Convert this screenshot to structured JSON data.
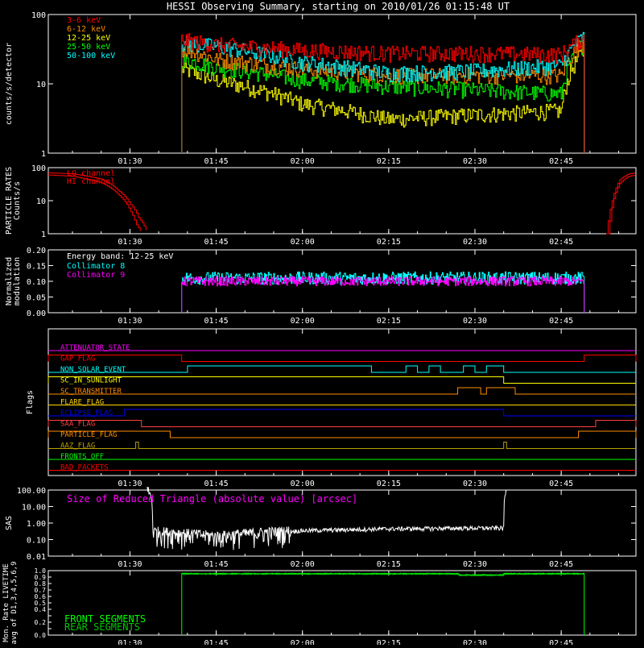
{
  "title": "HESSI Observing Summary, starting on 2010/01/26 01:15:48 UT",
  "time_axis": {
    "start": "01:15:48",
    "end": "02:58:00",
    "ticks": [
      "01:30",
      "01:45",
      "02:00",
      "02:15",
      "02:30",
      "02:45"
    ]
  },
  "chart_data": [
    {
      "type": "line",
      "ylabel": "counts/s/detector",
      "yscale": "log",
      "ylim": [
        1,
        100
      ],
      "yticks": [
        "1",
        "10",
        "100"
      ],
      "data_window": [
        "01:39:00",
        "02:49:00"
      ],
      "x": [
        "01:39",
        "01:45",
        "02:00",
        "02:15",
        "02:30",
        "02:45",
        "02:49"
      ],
      "series": [
        {
          "name": "3-6 keV",
          "color": "#ff0000",
          "values": [
            42,
            36,
            30,
            27,
            27,
            26,
            45
          ]
        },
        {
          "name": "6-12 keV",
          "color": "#ff8c00",
          "values": [
            32,
            22,
            16,
            13,
            13,
            13,
            40
          ]
        },
        {
          "name": "12-25 keV",
          "color": "#ffff00",
          "values": [
            16,
            11,
            5,
            3,
            3.5,
            4,
            30
          ]
        },
        {
          "name": "25-50 keV",
          "color": "#00ff00",
          "values": [
            22,
            17,
            11,
            9,
            8,
            7,
            38
          ]
        },
        {
          "name": "50-100 keV",
          "color": "#00ffff",
          "values": [
            38,
            34,
            20,
            14,
            15,
            18,
            48
          ]
        }
      ]
    },
    {
      "type": "line",
      "ylabel": [
        "PARTICLE RATES",
        "Counts/s"
      ],
      "yscale": "log",
      "ylim": [
        1,
        100
      ],
      "yticks": [
        "1",
        "10",
        "100"
      ],
      "series": [
        {
          "name": "LO channel",
          "color": "#ff0000",
          "points": [
            [
              "01:15:48",
              60
            ],
            [
              "01:20",
              55
            ],
            [
              "01:25",
              35
            ],
            [
              "01:28",
              15
            ],
            [
              "01:30",
              5
            ],
            [
              "01:31",
              2
            ],
            [
              "01:32",
              1
            ]
          ]
        },
        {
          "name": "HI channel",
          "color": "#ff0000",
          "points": [
            [
              "01:15:48",
              70
            ],
            [
              "01:20",
              65
            ],
            [
              "01:25",
              45
            ],
            [
              "01:28",
              20
            ],
            [
              "01:30",
              8
            ],
            [
              "01:31.5",
              3
            ],
            [
              "01:33",
              1
            ]
          ]
        }
      ]
    },
    {
      "type": "line",
      "ylabel": [
        "Normalized",
        "modulation"
      ],
      "ylim": [
        0,
        0.2
      ],
      "yticks": [
        "0.00",
        "0.05",
        "0.10",
        "0.15",
        "0.20"
      ],
      "annotation": "Energy band: 12-25 keV",
      "series": [
        {
          "name": "Collimator 8",
          "color": "#00ffff",
          "mean": 0.11,
          "spread": 0.02
        },
        {
          "name": "Collimator 9",
          "color": "#ff00ff",
          "mean": 0.1,
          "spread": 0.015
        }
      ]
    },
    {
      "type": "flags",
      "ylabel": "Flags",
      "flags": [
        {
          "name": "ATTENUATOR_STATE",
          "color": "#ff00ff",
          "on": []
        },
        {
          "name": "GAP_FLAG",
          "color": "#ff0000",
          "on": [
            [
              "01:15:48",
              "01:39"
            ],
            [
              "02:49",
              "02:58"
            ]
          ]
        },
        {
          "name": "NON_SOLAR_EVENT",
          "color": "#00ffff",
          "on": [
            [
              "01:40",
              "02:12"
            ],
            [
              "02:18",
              "02:20"
            ],
            [
              "02:22",
              "02:24"
            ],
            [
              "02:28",
              "02:30"
            ],
            [
              "02:32",
              "02:35"
            ]
          ]
        },
        {
          "name": "SC_IN_SUNLIGHT",
          "color": "#ffff00",
          "on": [
            [
              "01:15:48",
              "02:35"
            ]
          ]
        },
        {
          "name": "SC_TRANSMITTER",
          "color": "#ff8c00",
          "on": [
            [
              "02:27",
              "02:31"
            ],
            [
              "02:32",
              "02:37"
            ]
          ]
        },
        {
          "name": "FLARE_FLAG",
          "color": "#ffd700",
          "on": []
        },
        {
          "name": "ECLIPSE_FLAG",
          "color": "#0000ff",
          "on": [
            [
              "01:29",
              "02:35"
            ]
          ]
        },
        {
          "name": "SAA_FLAG",
          "color": "#ff4040",
          "on": [
            [
              "01:15:48",
              "01:32"
            ],
            [
              "02:51",
              "02:58"
            ]
          ]
        },
        {
          "name": "PARTICLE_FLAG",
          "color": "#ff8c00",
          "on": [
            [
              "01:15:48",
              "01:37"
            ],
            [
              "02:48",
              "02:58"
            ]
          ]
        },
        {
          "name": "AAZ_FLAG",
          "color": "#b8a000",
          "on": [
            [
              "01:31",
              "01:31:30"
            ],
            [
              "02:35",
              "02:35:30"
            ]
          ]
        },
        {
          "name": "FRONTS_OFF",
          "color": "#00ff00",
          "on": []
        },
        {
          "name": "BAD_PACKETS",
          "color": "#ff0000",
          "on": []
        }
      ]
    },
    {
      "type": "line",
      "ylabel": "SAS",
      "yscale": "log",
      "ylim": [
        0.01,
        100
      ],
      "yticks": [
        "0.01",
        "0.10",
        "1.00",
        "10.00",
        "100.00"
      ],
      "annotation": "Size of Reduced Triangle (absolute value) [arcsec]",
      "color": "#ffffff",
      "points": [
        [
          "01:33",
          100
        ],
        [
          "01:34",
          0.3
        ],
        [
          "01:45",
          0.15
        ],
        [
          "02:00",
          0.35
        ],
        [
          "02:15",
          0.45
        ],
        [
          "02:30",
          0.5
        ],
        [
          "02:35",
          0.5
        ],
        [
          "02:35:30",
          100
        ]
      ]
    },
    {
      "type": "line",
      "ylabel": [
        "Mon. Rate LIVETIME",
        "avg of D1,3,4,5,6,9"
      ],
      "ylim": [
        0,
        1
      ],
      "yticks": [
        "0.0",
        "0.1",
        "0.2",
        "0.3",
        "0.4",
        "0.5",
        "0.6",
        "0.7",
        "0.8",
        "0.9",
        "1.0"
      ],
      "data_window": [
        "01:39:00",
        "02:49:00"
      ],
      "series": [
        {
          "name": "FRONT SEGMENTS",
          "color": "#00ff00",
          "value": 0.96
        },
        {
          "name": "REAR SEGMENTS",
          "color": "#00c800",
          "value": 0.95
        }
      ]
    }
  ]
}
